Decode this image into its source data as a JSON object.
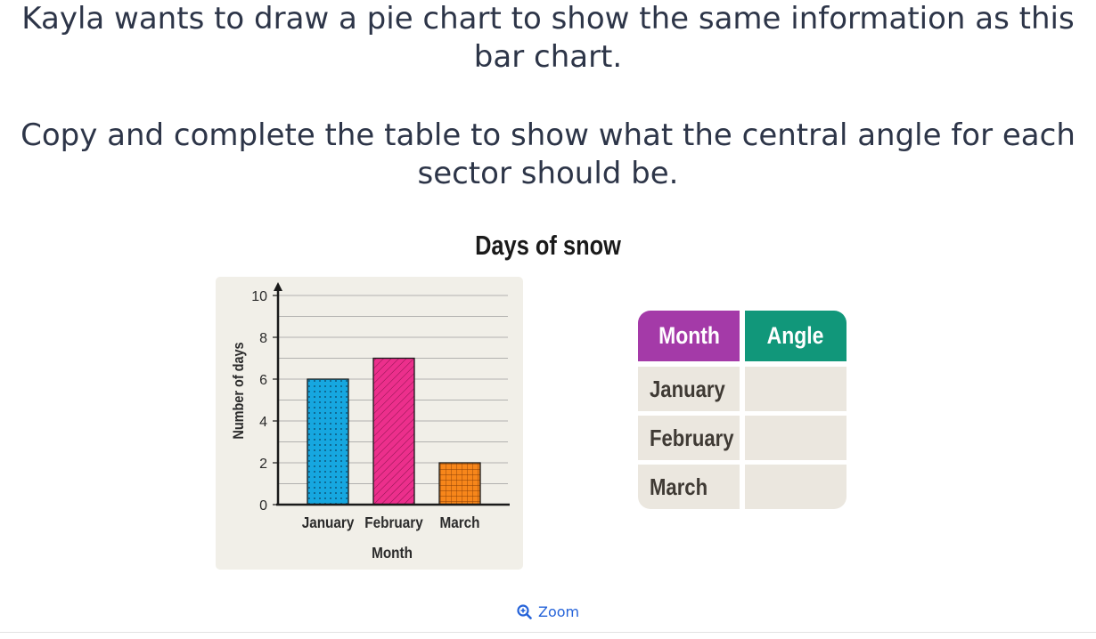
{
  "question": {
    "line1": "Kayla wants to draw a pie chart to show the same information as this bar chart.",
    "line2": "Copy and complete the table to show what the central angle for each sector should be."
  },
  "chart_data": {
    "type": "bar",
    "title": "Days of snow",
    "categories": [
      "January",
      "February",
      "March"
    ],
    "values": [
      6,
      7,
      2
    ],
    "xlabel": "Month",
    "ylabel": "Number of days",
    "ylim": [
      0,
      10
    ],
    "yticks": [
      "0",
      "2",
      "4",
      "6",
      "8",
      "10"
    ],
    "grid": true,
    "bar_colors": [
      "#16a7e0",
      "#ec2f8c",
      "#f7861a"
    ],
    "bar_patterns": [
      "dots",
      "diagonal-lines",
      "grid"
    ]
  },
  "table": {
    "headers": [
      "Month",
      "Angle"
    ],
    "rows": [
      {
        "month": "January",
        "angle": ""
      },
      {
        "month": "February",
        "angle": ""
      },
      {
        "month": "March",
        "angle": ""
      }
    ],
    "colors": {
      "month_header": "#a43aa8",
      "angle_header": "#11977a",
      "cell": "#ebe7df"
    }
  },
  "zoom": {
    "label": "Zoom",
    "icon": "zoom-in-icon"
  }
}
